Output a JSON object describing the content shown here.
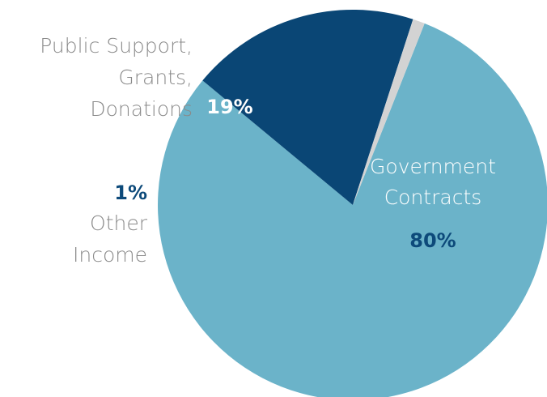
{
  "chart_data": {
    "type": "pie",
    "slices": [
      {
        "label_lines": [
          "Government",
          "Contracts"
        ],
        "value": 80,
        "value_label": "80%",
        "color": "#6bb3c9"
      },
      {
        "label_lines": [
          "Public Support,",
          "Grants,",
          "Donations"
        ],
        "value": 19,
        "value_label": "19%",
        "color": "#0a4675"
      },
      {
        "label_lines": [
          "Other",
          "Income"
        ],
        "value": 1,
        "value_label": "1%",
        "color": "#d3d3d3"
      }
    ]
  }
}
